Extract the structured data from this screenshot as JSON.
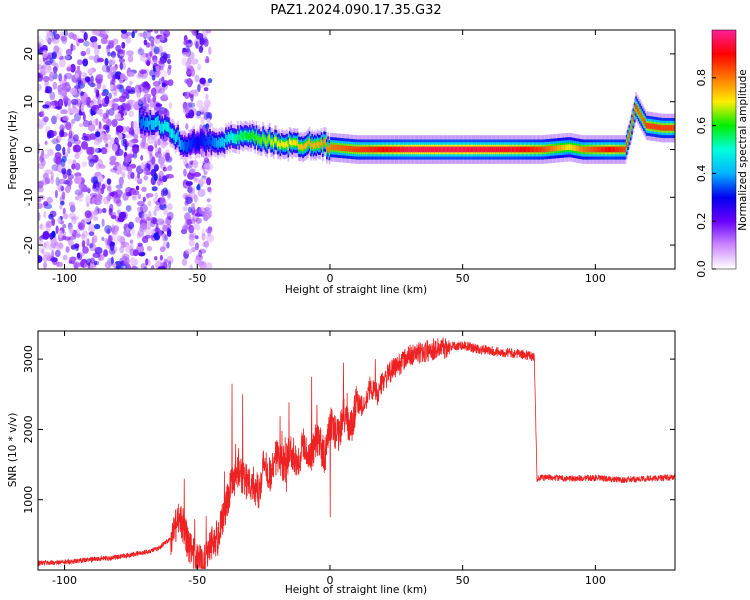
{
  "title": "PAZ1.2024.090.17.35.G32",
  "colors": {
    "snr_line": "#ee2222",
    "frame": "#000000",
    "colormap": [
      "#ffffff",
      "#cc88ff",
      "#6a00ff",
      "#0000ee",
      "#00b4ff",
      "#00ffdd",
      "#00ee00",
      "#ffee00",
      "#ff7700",
      "#ff0000",
      "#ff1f9b"
    ]
  },
  "chart_data": [
    {
      "type": "heatmap",
      "xlabel": "Height of straight line (km)",
      "ylabel": "Frequency (Hz)",
      "xlim": [
        -110,
        130
      ],
      "ylim": [
        -25,
        25
      ],
      "xticks": [
        -100,
        -50,
        0,
        50,
        100
      ],
      "yticks": [
        -20,
        -10,
        0,
        10,
        20
      ],
      "colorbar": {
        "label": "Normalized spectral amplitude",
        "range": [
          0,
          1
        ],
        "ticks": [
          "0.0",
          "0.2",
          "0.4",
          "0.6",
          "0.8"
        ],
        "colormap": "gist_ncar-like (white to purple to blue to cyan to green to yellow to red to pink)"
      },
      "ridge": [
        {
          "x": -72,
          "y": 6,
          "amp": 0.35
        },
        {
          "x": -66,
          "y": 5.5,
          "amp": 0.45
        },
        {
          "x": -62,
          "y": 4.5,
          "amp": 0.5
        },
        {
          "x": -58,
          "y": 2.5,
          "amp": 0.45
        },
        {
          "x": -55,
          "y": 1,
          "amp": 0.35
        },
        {
          "x": -50,
          "y": 1.5,
          "amp": 0.3
        },
        {
          "x": -45,
          "y": 1.5,
          "amp": 0.35
        },
        {
          "x": -40,
          "y": 2,
          "amp": 0.45
        },
        {
          "x": -35,
          "y": 2.5,
          "amp": 0.55
        },
        {
          "x": -30,
          "y": 2.5,
          "amp": 0.6
        },
        {
          "x": -25,
          "y": 2,
          "amp": 0.65
        },
        {
          "x": -20,
          "y": 1.5,
          "amp": 0.7
        },
        {
          "x": -15,
          "y": 1,
          "amp": 0.7
        },
        {
          "x": -10,
          "y": 1,
          "amp": 0.75
        },
        {
          "x": -5,
          "y": 1.5,
          "amp": 0.75
        },
        {
          "x": 0,
          "y": 0.5,
          "amp": 0.8
        },
        {
          "x": 10,
          "y": 0,
          "amp": 0.85
        },
        {
          "x": 20,
          "y": 0,
          "amp": 0.9
        },
        {
          "x": 30,
          "y": 0,
          "amp": 0.95
        },
        {
          "x": 50,
          "y": 0,
          "amp": 0.95
        },
        {
          "x": 70,
          "y": 0,
          "amp": 0.92
        },
        {
          "x": 80,
          "y": 0,
          "amp": 0.85
        },
        {
          "x": 90,
          "y": 0.5,
          "amp": 0.7
        },
        {
          "x": 95,
          "y": 0,
          "amp": 0.8
        },
        {
          "x": 105,
          "y": 0,
          "amp": 0.9
        },
        {
          "x": 111,
          "y": 0,
          "amp": 0.85
        },
        {
          "x": 113,
          "y": 4,
          "amp": 0.8
        },
        {
          "x": 115,
          "y": 9,
          "amp": 0.85
        },
        {
          "x": 117,
          "y": 7,
          "amp": 0.8
        },
        {
          "x": 119,
          "y": 5,
          "amp": 0.85
        },
        {
          "x": 125,
          "y": 4.5,
          "amp": 0.85
        },
        {
          "x": 130,
          "y": 4.5,
          "amp": 0.85
        }
      ],
      "noise_regions": [
        {
          "x_range": [
            -110,
            -60
          ],
          "y_range": [
            -25,
            25
          ],
          "amp": 0.3
        },
        {
          "x_range": [
            -55,
            -45
          ],
          "y_range": [
            -25,
            25
          ],
          "amp": 0.3
        }
      ]
    },
    {
      "type": "line",
      "xlabel": "Height of straight line (km)",
      "ylabel": "SNR (10 * v/v)",
      "xlim": [
        -110,
        130
      ],
      "ylim": [
        0,
        3400
      ],
      "xticks": [
        -100,
        -50,
        0,
        50,
        100
      ],
      "yticks": [
        1000,
        2000,
        3000
      ],
      "series": [
        {
          "x": [
            -110,
            -100,
            -90,
            -80,
            -70,
            -65,
            -60,
            -57,
            -55,
            -53,
            -50,
            -48,
            -45,
            -42,
            -40,
            -38,
            -35,
            -32,
            -30,
            -27,
            -25,
            -22,
            -20,
            -17,
            -15,
            -12,
            -10,
            -7,
            -5,
            -2,
            0,
            3,
            5,
            8,
            10,
            13,
            15,
            18,
            20,
            25,
            30,
            35,
            40,
            45,
            50,
            55,
            60,
            65,
            70,
            75,
            77,
            78,
            80,
            90,
            100,
            110,
            120,
            130
          ],
          "y": [
            100,
            110,
            150,
            180,
            250,
            300,
            450,
            750,
            600,
            300,
            150,
            100,
            400,
            450,
            800,
            1100,
            1400,
            1250,
            1300,
            1100,
            1500,
            1350,
            1650,
            1450,
            1700,
            1550,
            1800,
            1650,
            1900,
            1600,
            2100,
            1900,
            2200,
            2000,
            2400,
            2300,
            2600,
            2500,
            2700,
            2900,
            3050,
            3100,
            3150,
            3180,
            3200,
            3150,
            3120,
            3100,
            3080,
            3050,
            3020,
            1300,
            1320,
            1300,
            1310,
            1280,
            1300,
            1320
          ]
        }
      ],
      "annotations": [
        {
          "x": -55,
          "y": 1300
        },
        {
          "x": -37,
          "y": 2650
        },
        {
          "x": -33,
          "y": 2500
        },
        {
          "x": -7,
          "y": 2750
        },
        {
          "x": 17,
          "y": 3000
        },
        {
          "x": 5,
          "y": 2950
        },
        {
          "x": -5,
          "y": 2350
        },
        {
          "x": 0,
          "y": 750
        }
      ]
    }
  ]
}
